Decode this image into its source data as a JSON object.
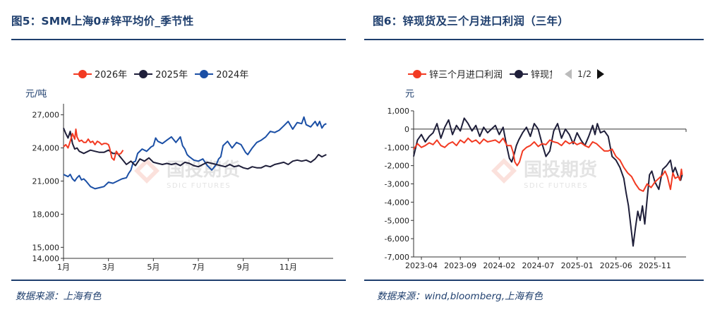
{
  "left": {
    "title": "图5：SMM上海0#锌平均价_季节性",
    "unit": "元/吨",
    "source": "数据来源：上海有色",
    "watermark": {
      "text": "国投期货",
      "sub": "SDIC FUTURES"
    }
  },
  "right": {
    "title": "图6：锌现货及三个月进口利润（三年）",
    "unit": "元",
    "source": "数据来源：wind,bloomberg,上海有色",
    "pager": "1/2",
    "watermark": {
      "text": "国投期货",
      "sub": "SDIC FUTURES"
    }
  },
  "chart_data": [
    {
      "type": "line",
      "title": "SMM上海0#锌平均价_季节性",
      "ylabel": "元/吨",
      "ylim": [
        14000,
        28000
      ],
      "yticks": [
        14000,
        15000,
        18000,
        21000,
        24000,
        27000
      ],
      "ytick_labels": [
        "14,000",
        "15,000",
        "18,000",
        "21,000",
        "24,000",
        "27,000"
      ],
      "xlim": [
        1,
        13
      ],
      "xticks": [
        1,
        3,
        5,
        7,
        9,
        11
      ],
      "xtick_labels": [
        "1月",
        "3月",
        "5月",
        "7月",
        "9月",
        "11月"
      ],
      "legend": "top",
      "grid": false,
      "series": [
        {
          "name": "2026年",
          "color": "#f23a22",
          "x": [
            1.0,
            1.1,
            1.2,
            1.3,
            1.4,
            1.5,
            1.55,
            1.6,
            1.7,
            1.8,
            1.9,
            2.0,
            2.1,
            2.2,
            2.3,
            2.4,
            2.5,
            2.6,
            2.7,
            2.8,
            2.9,
            3.0,
            3.05,
            3.15,
            3.25,
            3.35,
            3.45,
            3.55,
            3.65
          ],
          "y": [
            24100,
            24300,
            24000,
            24600,
            25300,
            24800,
            25700,
            25000,
            24600,
            24700,
            24500,
            24500,
            24800,
            24500,
            24600,
            24300,
            24600,
            24500,
            24300,
            24400,
            24400,
            24300,
            24000,
            23100,
            22900,
            23700,
            23400,
            23500,
            23800
          ]
        },
        {
          "name": "2025年",
          "color": "#1f1f3a",
          "x": [
            1.0,
            1.1,
            1.2,
            1.3,
            1.4,
            1.5,
            1.6,
            1.7,
            1.8,
            1.9,
            2.0,
            2.2,
            2.4,
            2.6,
            2.8,
            3.0,
            3.2,
            3.4,
            3.6,
            3.8,
            4.0,
            4.2,
            4.4,
            4.6,
            4.8,
            5.0,
            5.2,
            5.4,
            5.6,
            5.8,
            6.0,
            6.2,
            6.4,
            6.6,
            6.8,
            7.0,
            7.2,
            7.4,
            7.6,
            7.8,
            8.0,
            8.2,
            8.4,
            8.6,
            8.8,
            9.0,
            9.2,
            9.4,
            9.6,
            9.8,
            10.0,
            10.2,
            10.4,
            10.6,
            10.8,
            11.0,
            11.2,
            11.4,
            11.6,
            11.8,
            12.0,
            12.2,
            12.35,
            12.5,
            12.6,
            12.7
          ],
          "y": [
            25800,
            25300,
            24900,
            25500,
            24400,
            23900,
            24000,
            23700,
            23600,
            23500,
            23600,
            23800,
            23700,
            23600,
            23600,
            23800,
            23500,
            23500,
            23000,
            22500,
            22800,
            22400,
            23000,
            22800,
            23100,
            22700,
            22600,
            22500,
            22600,
            22500,
            22600,
            22400,
            22700,
            22600,
            22400,
            22300,
            22500,
            22700,
            22600,
            22500,
            22400,
            22300,
            22500,
            22300,
            22400,
            22200,
            22100,
            22300,
            22200,
            22200,
            22400,
            22300,
            22500,
            22600,
            22700,
            22500,
            22800,
            22900,
            22800,
            22900,
            22700,
            23000,
            23400,
            23200,
            23300,
            23400
          ]
        },
        {
          "name": "2024年",
          "color": "#1b4fa5",
          "x": [
            1.0,
            1.1,
            1.2,
            1.3,
            1.4,
            1.5,
            1.6,
            1.7,
            1.8,
            1.9,
            2.0,
            2.2,
            2.4,
            2.6,
            2.8,
            3.0,
            3.2,
            3.4,
            3.6,
            3.8,
            3.9,
            4.0,
            4.1,
            4.2,
            4.3,
            4.5,
            4.7,
            4.9,
            5.0,
            5.1,
            5.2,
            5.4,
            5.6,
            5.8,
            6.0,
            6.2,
            6.3,
            6.4,
            6.5,
            6.6,
            6.8,
            7.0,
            7.2,
            7.4,
            7.6,
            7.8,
            7.9,
            8.0,
            8.1,
            8.3,
            8.5,
            8.7,
            8.9,
            9.1,
            9.2,
            9.4,
            9.6,
            9.8,
            10.0,
            10.2,
            10.4,
            10.6,
            10.8,
            11.0,
            11.2,
            11.4,
            11.6,
            11.7,
            11.8,
            12.0,
            12.2,
            12.3,
            12.4,
            12.5,
            12.6,
            12.7
          ],
          "y": [
            21600,
            21500,
            21400,
            21600,
            21200,
            21000,
            21300,
            21500,
            21100,
            21200,
            21000,
            20500,
            20300,
            20400,
            20500,
            20900,
            20800,
            21000,
            21200,
            21300,
            21700,
            22000,
            22700,
            22800,
            23500,
            23900,
            23700,
            24100,
            24200,
            24900,
            24600,
            24400,
            24700,
            25000,
            24500,
            25000,
            24200,
            23900,
            23400,
            23200,
            22900,
            22800,
            23000,
            22400,
            22000,
            22500,
            23000,
            23200,
            24200,
            24600,
            24000,
            24500,
            24300,
            23600,
            23400,
            24000,
            24500,
            24700,
            25000,
            25500,
            25400,
            25600,
            26000,
            26400,
            25700,
            26300,
            26200,
            26800,
            26100,
            25900,
            26400,
            26000,
            26400,
            25800,
            26100,
            26200
          ]
        }
      ]
    },
    {
      "type": "line",
      "title": "锌现货及三个月进口利润（三年）",
      "ylabel": "元",
      "ylim": [
        -7000,
        1000
      ],
      "yticks": [
        -7000,
        -6000,
        -5000,
        -4000,
        -3000,
        -2000,
        -1000,
        0,
        1000
      ],
      "ytick_labels": [
        "-7,000",
        "-6,000",
        "-5,000",
        "-4,000",
        "-3,000",
        "-2,000",
        "-1,000",
        "0",
        "1,000"
      ],
      "xlim": [
        0,
        35
      ],
      "xticks": [
        1,
        6,
        11,
        16,
        21,
        26,
        31
      ],
      "xtick_labels": [
        "2023-04",
        "2023-09",
        "2024-02",
        "2024-07",
        "2025-01",
        "2025-06",
        "2025-11"
      ],
      "legend": "top",
      "grid": false,
      "series": [
        {
          "name": "锌三个月进口利润",
          "color": "#f23a22",
          "x": [
            0.0,
            0.5,
            1.0,
            1.5,
            2.0,
            2.5,
            3.0,
            3.5,
            4.0,
            4.5,
            5.0,
            5.5,
            6.0,
            6.5,
            7.0,
            7.5,
            8.0,
            8.5,
            9.0,
            9.5,
            10.0,
            10.5,
            11.0,
            11.5,
            12.0,
            12.5,
            12.8,
            13.0,
            13.3,
            13.6,
            14.0,
            14.5,
            15.0,
            15.5,
            16.0,
            16.5,
            17.0,
            17.5,
            18.0,
            18.5,
            19.0,
            19.5,
            20.0,
            20.5,
            21.0,
            21.5,
            22.0,
            22.5,
            23.0,
            23.5,
            24.0,
            24.5,
            25.0,
            25.5,
            26.0,
            26.5,
            27.0,
            27.5,
            28.0,
            28.5,
            29.0,
            29.5,
            30.0,
            30.5,
            31.0,
            31.5,
            32.0,
            32.3,
            32.6,
            33.0,
            33.3,
            33.6,
            34.0,
            34.2,
            34.4,
            34.5
          ],
          "y": [
            -1100,
            -800,
            -1000,
            -900,
            -750,
            -850,
            -600,
            -900,
            -1000,
            -800,
            -700,
            -900,
            -600,
            -750,
            -500,
            -700,
            -600,
            -800,
            -550,
            -700,
            -650,
            -600,
            -750,
            -500,
            -900,
            -900,
            -1300,
            -1800,
            -2000,
            -1800,
            -1200,
            -1000,
            -900,
            -700,
            -950,
            -800,
            -850,
            -600,
            -700,
            -750,
            -900,
            -650,
            -800,
            -700,
            -850,
            -750,
            -900,
            -1000,
            -700,
            -800,
            -1000,
            -1200,
            -1200,
            -1100,
            -1500,
            -1700,
            -2100,
            -2400,
            -2600,
            -3000,
            -3300,
            -3400,
            -3000,
            -3200,
            -2900,
            -2700,
            -2500,
            -2300,
            -2600,
            -3300,
            -2400,
            -2700,
            -2600,
            -2800,
            -2200,
            -2500
          ]
        },
        {
          "name": "锌现货进口利润",
          "color": "#1f1f3a",
          "x": [
            0.0,
            0.5,
            1.0,
            1.5,
            2.0,
            2.5,
            3.0,
            3.5,
            4.0,
            4.5,
            5.0,
            5.5,
            6.0,
            6.5,
            7.0,
            7.5,
            8.0,
            8.5,
            9.0,
            9.5,
            10.0,
            10.5,
            11.0,
            11.5,
            12.0,
            12.3,
            12.6,
            12.9,
            13.2,
            13.5,
            14.0,
            14.5,
            15.0,
            15.5,
            16.0,
            16.5,
            17.0,
            17.5,
            18.0,
            18.5,
            19.0,
            19.5,
            20.0,
            20.5,
            21.0,
            21.5,
            22.0,
            22.5,
            23.0,
            23.3,
            23.6,
            24.0,
            24.5,
            25.0,
            25.5,
            26.0,
            26.5,
            27.0,
            27.3,
            27.6,
            27.9,
            28.2,
            28.5,
            28.8,
            29.1,
            29.4,
            29.7,
            30.0,
            30.3,
            30.6,
            31.0,
            31.5,
            32.0,
            32.5,
            33.0,
            33.3,
            33.6,
            34.0,
            34.3,
            34.5
          ],
          "y": [
            -1500,
            -600,
            -300,
            -700,
            -400,
            -200,
            300,
            -500,
            100,
            500,
            -300,
            200,
            -100,
            600,
            300,
            -100,
            200,
            -400,
            100,
            -200,
            0,
            200,
            -300,
            100,
            -1000,
            -1600,
            -1800,
            -1400,
            -900,
            -600,
            -200,
            100,
            -400,
            300,
            0,
            -800,
            -1500,
            -1200,
            -100,
            300,
            -500,
            0,
            -300,
            -800,
            -200,
            -600,
            -900,
            -400,
            200,
            -300,
            300,
            -200,
            -100,
            -400,
            -1500,
            -1700,
            -2100,
            -2700,
            -3500,
            -4200,
            -5300,
            -6400,
            -5400,
            -4500,
            -5000,
            -4200,
            -5200,
            -3800,
            -2500,
            -2300,
            -2900,
            -3300,
            -2200,
            -2000,
            -1700,
            -2400,
            -2100,
            -2600,
            -2800,
            -2500
          ]
        }
      ]
    }
  ]
}
